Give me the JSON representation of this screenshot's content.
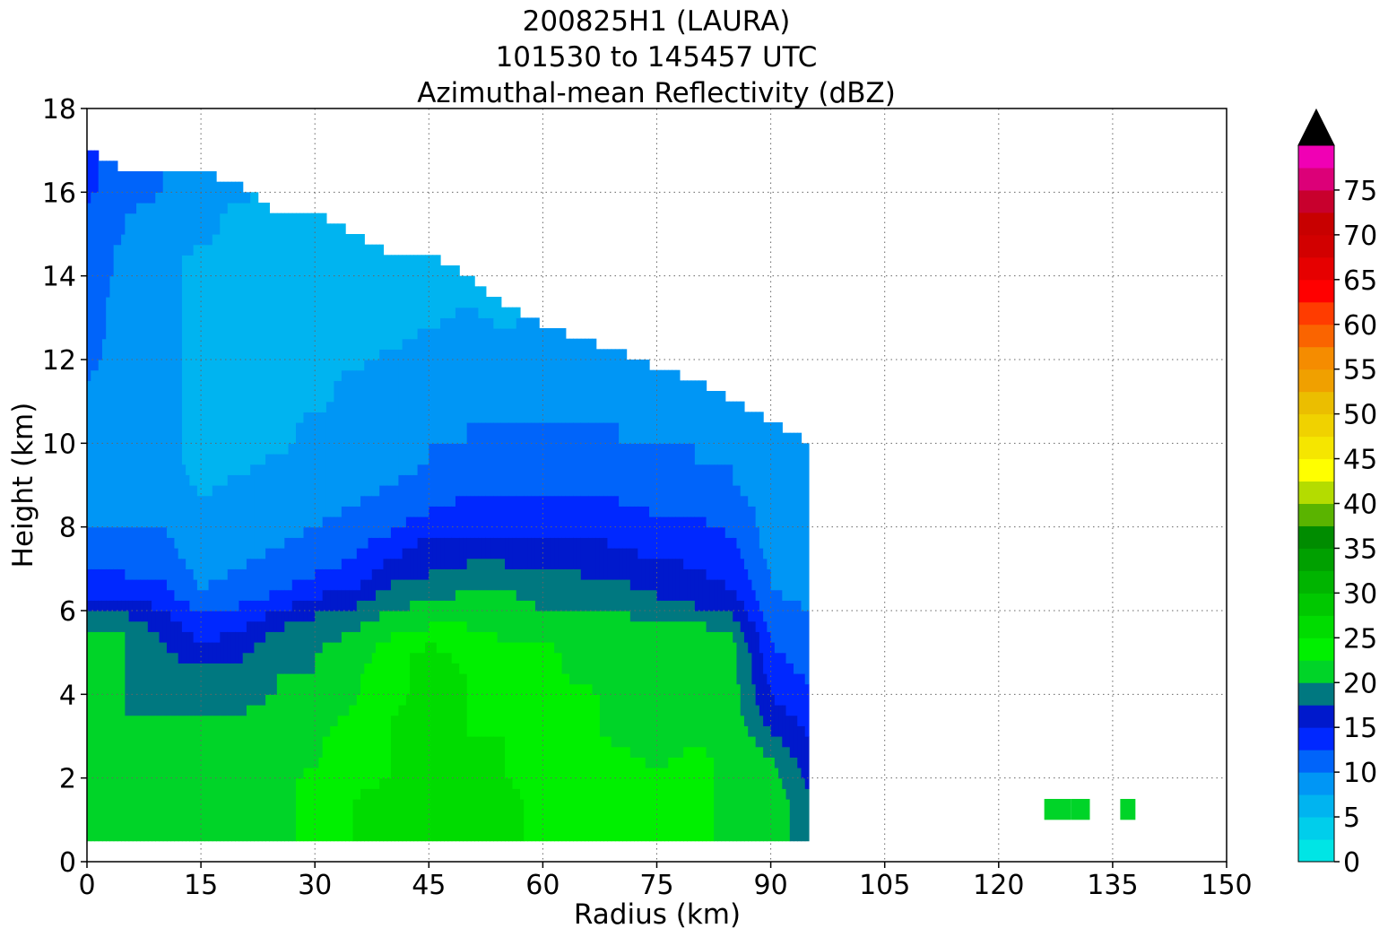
{
  "chart_data": {
    "type": "contourf",
    "title_lines": [
      "200825H1 (LAURA)",
      "101530 to 145457 UTC",
      "Azimuthal-mean Reflectivity (dBZ)"
    ],
    "xlabel": "Radius (km)",
    "ylabel": "Height (km)",
    "xlim": [
      0,
      150
    ],
    "ylim": [
      0,
      18
    ],
    "xticks": [
      0,
      15,
      30,
      45,
      60,
      75,
      90,
      105,
      120,
      135,
      150
    ],
    "yticks": [
      0,
      2,
      4,
      6,
      8,
      10,
      12,
      14,
      16,
      18
    ],
    "grid": true,
    "colorbar": {
      "min": 0,
      "max": 80,
      "step": 2.5,
      "ticks": [
        0,
        5,
        10,
        15,
        20,
        25,
        30,
        35,
        40,
        45,
        50,
        55,
        60,
        65,
        70,
        75
      ],
      "extend": "max",
      "over_color": "#000000",
      "colors": [
        "#00e5e5",
        "#00ceeb",
        "#00b4f0",
        "#0096f5",
        "#0064fa",
        "#0028ff",
        "#0019cc",
        "#007880",
        "#00d428",
        "#00f000",
        "#00dc00",
        "#00c800",
        "#00b400",
        "#00a000",
        "#008c00",
        "#5ab400",
        "#b4dc00",
        "#ffff00",
        "#f5e600",
        "#f0d200",
        "#ebbe00",
        "#f0a000",
        "#f58c00",
        "#fa6400",
        "#ff3c00",
        "#ff0000",
        "#e60000",
        "#d20000",
        "#c80000",
        "#c8002d",
        "#dc0078",
        "#f000b4",
        "#f000e6",
        "#d23ce6",
        "#a050d2",
        "#7846a0",
        "#3c2050"
      ]
    },
    "field_dbz": {
      "x_km": [
        0,
        5,
        10,
        15,
        20,
        25,
        30,
        35,
        40,
        45,
        50,
        55,
        60,
        65,
        70,
        75,
        80,
        85,
        90,
        95
      ],
      "z_km": [
        0.5,
        1,
        1.5,
        2,
        2.5,
        3,
        3.5,
        4,
        4.5,
        5,
        5.5,
        6,
        6.5,
        7,
        7.5,
        8,
        8.5,
        9,
        9.5,
        10,
        10.5,
        11,
        11.5,
        12,
        12.5,
        13,
        13.5,
        14,
        14.5,
        15,
        15.5,
        16,
        16.5,
        17
      ],
      "top_km": [
        17,
        16.5,
        16.5,
        16.5,
        16.2,
        15.5,
        15.5,
        15,
        14.5,
        14.5,
        14,
        13.3,
        12.8,
        12.5,
        12.2,
        11.8,
        11.5,
        11,
        10.5,
        10
      ],
      "columns": [
        [
          20,
          20,
          20,
          20,
          20,
          20,
          20,
          20,
          20,
          20,
          20,
          17,
          14,
          12,
          11,
          10,
          10,
          10,
          10,
          9,
          9,
          10,
          10,
          11,
          11,
          11,
          11,
          12,
          12,
          12,
          12,
          13,
          13,
          14
        ],
        [
          22,
          22,
          22,
          22,
          21,
          20,
          20,
          20,
          20,
          20,
          20,
          17,
          14,
          12,
          11,
          10,
          9,
          9,
          8,
          8,
          8,
          8,
          8,
          8,
          9,
          9,
          9,
          9,
          9,
          10,
          10,
          11,
          11,
          11
        ],
        [
          21,
          21,
          21,
          21,
          20,
          20,
          20,
          19,
          19,
          18,
          17,
          15,
          13,
          12,
          11,
          10,
          9,
          9,
          8,
          8,
          8,
          8,
          8,
          8,
          8,
          8,
          8,
          8,
          8,
          9,
          9,
          10,
          10,
          10
        ],
        [
          20,
          21,
          21,
          21,
          20,
          20,
          20,
          19,
          18,
          16,
          14,
          12,
          10,
          9,
          8,
          8,
          8,
          7,
          7,
          7,
          7,
          7,
          7,
          7,
          7,
          7,
          7,
          7,
          7,
          8,
          8,
          8,
          9,
          9
        ],
        [
          21,
          21,
          21,
          21,
          21,
          20,
          20,
          19,
          18,
          17,
          15,
          13,
          11,
          10,
          9,
          8,
          8,
          8,
          7,
          7,
          7,
          7,
          7,
          6,
          6,
          6,
          6,
          7,
          7,
          7,
          7,
          8,
          9,
          9
        ],
        [
          22,
          22,
          22,
          22,
          22,
          21,
          21,
          20,
          20,
          19,
          18,
          15,
          12,
          11,
          10,
          9,
          8,
          8,
          8,
          7,
          7,
          7,
          7,
          7,
          7,
          6,
          6,
          7,
          7,
          7,
          7,
          7
        ],
        [
          23,
          23,
          23,
          23,
          22,
          22,
          21,
          21,
          20,
          20,
          19,
          17,
          14,
          12,
          11,
          10,
          9,
          9,
          8,
          8,
          8,
          7,
          7,
          7,
          7,
          7,
          7,
          7,
          7,
          7,
          7,
          7
        ],
        [
          25,
          25,
          25,
          24,
          24,
          24,
          23,
          22,
          22,
          21,
          20,
          18,
          15,
          13,
          12,
          11,
          10,
          9,
          9,
          8,
          8,
          8,
          8,
          7,
          7,
          7,
          7,
          7,
          7
        ],
        [
          26,
          26,
          26,
          25,
          25,
          25,
          25,
          24,
          24,
          24,
          22,
          20,
          18,
          16,
          14,
          12,
          11,
          10,
          9,
          9,
          9,
          8,
          8,
          8,
          7,
          7,
          7,
          7,
          7
        ],
        [
          26,
          26,
          26,
          26,
          26,
          26,
          26,
          26,
          26,
          26,
          23,
          21,
          19,
          17,
          16,
          14,
          12,
          11,
          10,
          10,
          9,
          9,
          8,
          8,
          8,
          7,
          7,
          7
        ],
        [
          26,
          26,
          26,
          26,
          26,
          25,
          25,
          25,
          25,
          24,
          23,
          21,
          20,
          18,
          16,
          14,
          13,
          12,
          11,
          10,
          10,
          9,
          9,
          8,
          8,
          8,
          7
        ],
        [
          26,
          26,
          26,
          25,
          25,
          25,
          24,
          24,
          24,
          23,
          22,
          21,
          20,
          18,
          16,
          14,
          13,
          12,
          11,
          10,
          10,
          9,
          9,
          8,
          8,
          7
        ],
        [
          24,
          24,
          24,
          24,
          24,
          24,
          23,
          23,
          23,
          23,
          22,
          20,
          19,
          17,
          16,
          14,
          13,
          12,
          11,
          10,
          10,
          9,
          9,
          8,
          8
        ],
        [
          23,
          23,
          23,
          23,
          24,
          23,
          23,
          23,
          22,
          22,
          22,
          20,
          19,
          17,
          16,
          14,
          13,
          12,
          11,
          10,
          10,
          9,
          9,
          8
        ],
        [
          23,
          23,
          23,
          23,
          23,
          22,
          22,
          22,
          22,
          22,
          21,
          20,
          18,
          17,
          15,
          14,
          13,
          11,
          11,
          10,
          10,
          9,
          8
        ],
        [
          23,
          23,
          23,
          23,
          22,
          22,
          22,
          22,
          22,
          21,
          21,
          19,
          17,
          16,
          14,
          13,
          12,
          11,
          10,
          10,
          9,
          9,
          8
        ],
        [
          23,
          23,
          23,
          23,
          23,
          22,
          22,
          22,
          22,
          22,
          21,
          18,
          16,
          15,
          14,
          13,
          12,
          11,
          10,
          10,
          9,
          8
        ],
        [
          22,
          22,
          22,
          22,
          22,
          22,
          21,
          21,
          21,
          21,
          20,
          17,
          15,
          14,
          13,
          12,
          11,
          10,
          10,
          9,
          8
        ],
        [
          22,
          22,
          22,
          21,
          20,
          18,
          16,
          15,
          14,
          13,
          12,
          11,
          10,
          10,
          9,
          9,
          9,
          9,
          9,
          9,
          8
        ],
        [
          18,
          18,
          18,
          17,
          16,
          15,
          14,
          13,
          12,
          11,
          10,
          10,
          9,
          9,
          9,
          9,
          9,
          9,
          8,
          8
        ]
      ],
      "isolated_cells": [
        {
          "x_km": [
            126,
            129.5
          ],
          "z_km": [
            1,
            1.5
          ],
          "dbz": 21
        },
        {
          "x_km": [
            129.5,
            132
          ],
          "z_km": [
            1,
            1.5
          ],
          "dbz": 20
        },
        {
          "x_km": [
            136,
            138
          ],
          "z_km": [
            1,
            1.5
          ],
          "dbz": 20
        }
      ]
    }
  }
}
